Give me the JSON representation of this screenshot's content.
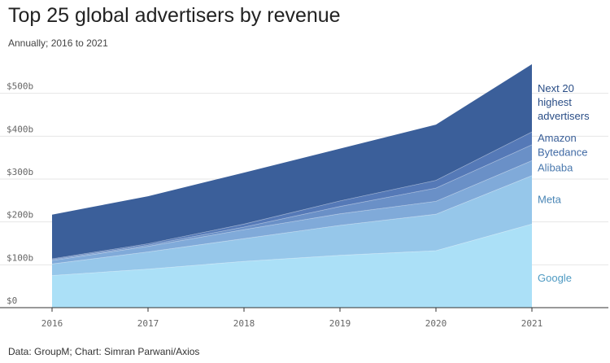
{
  "title": "Top 25 global advertisers by revenue",
  "subtitle": "Annually; 2016 to 2021",
  "source": "Data: GroupM; Chart: Simran Parwani/Axios",
  "chart_data": {
    "type": "area",
    "stacked": true,
    "x": [
      "2016",
      "2017",
      "2018",
      "2019",
      "2020",
      "2021"
    ],
    "ylim": [
      0,
      600
    ],
    "y_ticks": [
      0,
      100,
      200,
      300,
      400,
      500
    ],
    "y_tick_labels": [
      "$0",
      "$100b",
      "$200b",
      "$300b",
      "$400b",
      "$500b"
    ],
    "x_tick_labels": [
      "2016",
      "2017",
      "2018",
      "2019",
      "2020",
      "2021"
    ],
    "grid": true,
    "legend": "right",
    "series": [
      {
        "name": "Google",
        "color": "#abe0f7",
        "values": [
          75,
          90,
          108,
          122,
          133,
          195
        ]
      },
      {
        "name": "Meta",
        "color": "#96c7ea",
        "values": [
          27,
          40,
          53,
          70,
          85,
          113
        ]
      },
      {
        "name": "Alibaba",
        "color": "#80aad9",
        "values": [
          8,
          13,
          21,
          27,
          30,
          35
        ]
      },
      {
        "name": "Bytedance",
        "color": "#6a90c7",
        "values": [
          2,
          3,
          6,
          17,
          31,
          37
        ]
      },
      {
        "name": "Amazon",
        "color": "#5579b7",
        "values": [
          2,
          3,
          7,
          13,
          18,
          30
        ]
      },
      {
        "name": "Next 20 highest advertisers",
        "label_lines": [
          "Next 20",
          "highest",
          "advertisers"
        ],
        "color": "#3b5f9a",
        "values": [
          103,
          111,
          120,
          122,
          130,
          158
        ]
      }
    ],
    "label_colors": {
      "Google": "#4e9ac2",
      "Meta": "#4a86b6",
      "Alibaba": "#4a79ae",
      "Bytedance": "#3f69a4",
      "Amazon": "#3a5f98",
      "Next 20 highest advertisers": "#294d86"
    }
  }
}
